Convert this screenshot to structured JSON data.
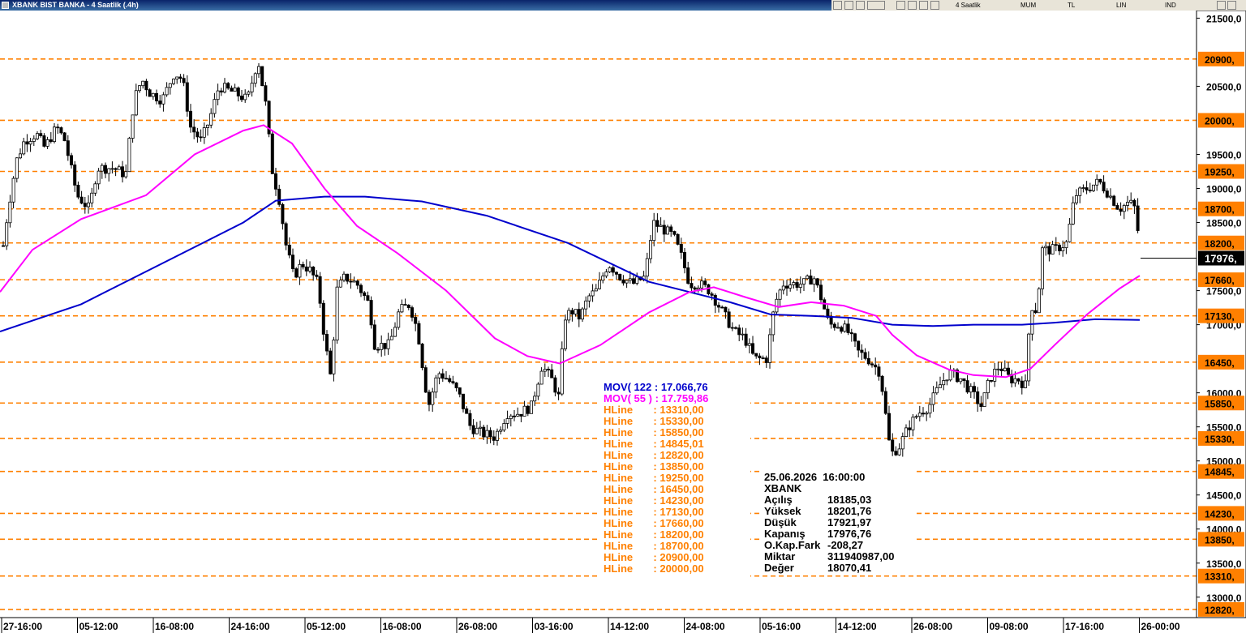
{
  "window": {
    "title": "XBANK BIST BANKA - 4 Saatlik (.4h)",
    "toolbar": {
      "period": "4 Saatlik",
      "type": "MUM",
      "currency": "TL",
      "scale": "LIN",
      "mode": "IND"
    }
  },
  "chart_data": {
    "type": "candlestick",
    "symbol": "XBANK",
    "ylim": [
      12700,
      21600
    ],
    "y_ticks": [
      {
        "value": 21500,
        "label": "21500,0"
      },
      {
        "value": 20500,
        "label": "20500,0"
      },
      {
        "value": 19500,
        "label": "19500,0"
      },
      {
        "value": 19000,
        "label": "19000,0"
      },
      {
        "value": 18500,
        "label": "18500,0"
      },
      {
        "value": 17500,
        "label": "17500,0"
      },
      {
        "value": 17000,
        "label": "17000,0"
      },
      {
        "value": 16000,
        "label": "16000,0"
      },
      {
        "value": 15500,
        "label": "15500,0"
      },
      {
        "value": 15000,
        "label": "15000,0"
      },
      {
        "value": 14500,
        "label": "14500,0"
      },
      {
        "value": 14000,
        "label": "14000,0"
      },
      {
        "value": 13500,
        "label": "13500,0"
      },
      {
        "value": 13000,
        "label": "13000,0"
      }
    ],
    "x_labels": [
      "27-16:00",
      "05-12:00",
      "16-08:00",
      "24-16:00",
      "05-12:00",
      "16-08:00",
      "26-08:00",
      "03-16:00",
      "14-12:00",
      "24-08:00",
      "05-16:00",
      "14-12:00",
      "26-08:00",
      "09-08:00",
      "17-16:00",
      "26-00:00"
    ],
    "hlines": [
      {
        "value": 20900,
        "label": "20900,"
      },
      {
        "value": 20000,
        "label": "20000,"
      },
      {
        "value": 19250,
        "label": "19250,"
      },
      {
        "value": 18700,
        "label": "18700,"
      },
      {
        "value": 18200,
        "label": "18200,"
      },
      {
        "value": 17660,
        "label": "17660,"
      },
      {
        "value": 17130,
        "label": "17130,"
      },
      {
        "value": 16450,
        "label": "16450,"
      },
      {
        "value": 15850,
        "label": "15850,"
      },
      {
        "value": 15330,
        "label": "15330,"
      },
      {
        "value": 14845,
        "label": "14845,"
      },
      {
        "value": 14230,
        "label": "14230,"
      },
      {
        "value": 13850,
        "label": "13850,"
      },
      {
        "value": 13310,
        "label": "13310,"
      },
      {
        "value": 12820,
        "label": "12820,"
      }
    ],
    "last_price": {
      "value": 17976.76,
      "label": "17976,"
    },
    "close_path": [
      [
        0,
        17800
      ],
      [
        10,
        18700
      ],
      [
        20,
        19400
      ],
      [
        30,
        19700
      ],
      [
        45,
        19800
      ],
      [
        55,
        19600
      ],
      [
        70,
        19900
      ],
      [
        80,
        19700
      ],
      [
        95,
        18900
      ],
      [
        110,
        18700
      ],
      [
        120,
        19300
      ],
      [
        140,
        19300
      ],
      [
        155,
        19200
      ],
      [
        165,
        20300
      ],
      [
        175,
        20600
      ],
      [
        185,
        20400
      ],
      [
        200,
        20300
      ],
      [
        215,
        20700
      ],
      [
        225,
        20600
      ],
      [
        235,
        19900
      ],
      [
        248,
        19700
      ],
      [
        258,
        20000
      ],
      [
        270,
        20500
      ],
      [
        290,
        20400
      ],
      [
        305,
        20300
      ],
      [
        318,
        20900
      ],
      [
        328,
        20200
      ],
      [
        335,
        19300
      ],
      [
        345,
        18800
      ],
      [
        352,
        18200
      ],
      [
        362,
        17700
      ],
      [
        372,
        17900
      ],
      [
        382,
        17800
      ],
      [
        392,
        17600
      ],
      [
        400,
        16800
      ],
      [
        408,
        16200
      ],
      [
        415,
        17500
      ],
      [
        425,
        17700
      ],
      [
        440,
        17600
      ],
      [
        455,
        17300
      ],
      [
        462,
        16700
      ],
      [
        480,
        16700
      ],
      [
        492,
        17200
      ],
      [
        505,
        17300
      ],
      [
        515,
        16900
      ],
      [
        528,
        15800
      ],
      [
        540,
        16300
      ],
      [
        552,
        16200
      ],
      [
        565,
        16000
      ],
      [
        580,
        15500
      ],
      [
        595,
        15400
      ],
      [
        610,
        15350
      ],
      [
        625,
        15700
      ],
      [
        640,
        15700
      ],
      [
        655,
        15800
      ],
      [
        668,
        16400
      ],
      [
        680,
        16200
      ],
      [
        690,
        15900
      ],
      [
        695,
        17100
      ],
      [
        705,
        17200
      ],
      [
        715,
        17100
      ],
      [
        725,
        17400
      ],
      [
        735,
        17500
      ],
      [
        750,
        17900
      ],
      [
        765,
        17700
      ],
      [
        780,
        17600
      ],
      [
        795,
        17700
      ],
      [
        805,
        18500
      ],
      [
        818,
        18400
      ],
      [
        830,
        18300
      ],
      [
        840,
        18000
      ],
      [
        850,
        17600
      ],
      [
        862,
        17600
      ],
      [
        875,
        17500
      ],
      [
        885,
        17300
      ],
      [
        895,
        17100
      ],
      [
        905,
        16900
      ],
      [
        918,
        16800
      ],
      [
        930,
        16500
      ],
      [
        945,
        16500
      ],
      [
        955,
        17300
      ],
      [
        965,
        17600
      ],
      [
        978,
        17600
      ],
      [
        990,
        17600
      ],
      [
        1003,
        17700
      ],
      [
        1012,
        17400
      ],
      [
        1022,
        17000
      ],
      [
        1035,
        17000
      ],
      [
        1045,
        16900
      ],
      [
        1058,
        16600
      ],
      [
        1070,
        16500
      ],
      [
        1085,
        16300
      ],
      [
        1098,
        15100
      ],
      [
        1108,
        15200
      ],
      [
        1120,
        15500
      ],
      [
        1132,
        15700
      ],
      [
        1145,
        15800
      ],
      [
        1158,
        16100
      ],
      [
        1170,
        16300
      ],
      [
        1185,
        16200
      ],
      [
        1198,
        16000
      ],
      [
        1210,
        15800
      ],
      [
        1220,
        16200
      ],
      [
        1232,
        16400
      ],
      [
        1245,
        16200
      ],
      [
        1255,
        16200
      ],
      [
        1265,
        16100
      ],
      [
        1270,
        17300
      ],
      [
        1278,
        17200
      ],
      [
        1285,
        18100
      ],
      [
        1300,
        18100
      ],
      [
        1315,
        18200
      ],
      [
        1325,
        18900
      ],
      [
        1340,
        19000
      ],
      [
        1355,
        19100
      ],
      [
        1368,
        18900
      ],
      [
        1380,
        18700
      ],
      [
        1392,
        18800
      ],
      [
        1400,
        18700
      ],
      [
        1406,
        17976
      ]
    ],
    "series": [
      {
        "name": "MOV( 122",
        "value_label": "17.066,76",
        "color": "#0000cc",
        "path": [
          [
            0,
            16900
          ],
          [
            100,
            17300
          ],
          [
            200,
            17900
          ],
          [
            300,
            18500
          ],
          [
            340,
            18820
          ],
          [
            400,
            18880
          ],
          [
            450,
            18880
          ],
          [
            520,
            18810
          ],
          [
            600,
            18600
          ],
          [
            700,
            18200
          ],
          [
            800,
            17630
          ],
          [
            900,
            17330
          ],
          [
            950,
            17150
          ],
          [
            1000,
            17130
          ],
          [
            1050,
            17100
          ],
          [
            1100,
            17000
          ],
          [
            1150,
            16980
          ],
          [
            1200,
            17000
          ],
          [
            1260,
            17000
          ],
          [
            1300,
            17030
          ],
          [
            1350,
            17080
          ],
          [
            1405,
            17070
          ]
        ]
      },
      {
        "name": "MOV( 55 )",
        "value_label": "17.759,86",
        "color": "#ff00ff",
        "path": [
          [
            0,
            17480
          ],
          [
            40,
            18100
          ],
          [
            100,
            18550
          ],
          [
            180,
            18900
          ],
          [
            240,
            19500
          ],
          [
            300,
            19850
          ],
          [
            325,
            19930
          ],
          [
            360,
            19660
          ],
          [
            400,
            19000
          ],
          [
            440,
            18450
          ],
          [
            490,
            18050
          ],
          [
            550,
            17500
          ],
          [
            610,
            16800
          ],
          [
            650,
            16540
          ],
          [
            690,
            16430
          ],
          [
            740,
            16700
          ],
          [
            800,
            17180
          ],
          [
            850,
            17480
          ],
          [
            880,
            17550
          ],
          [
            920,
            17400
          ],
          [
            960,
            17260
          ],
          [
            1000,
            17330
          ],
          [
            1040,
            17280
          ],
          [
            1080,
            17130
          ],
          [
            1100,
            16850
          ],
          [
            1130,
            16550
          ],
          [
            1170,
            16340
          ],
          [
            1200,
            16260
          ],
          [
            1240,
            16230
          ],
          [
            1270,
            16350
          ],
          [
            1300,
            16700
          ],
          [
            1340,
            17150
          ],
          [
            1380,
            17530
          ],
          [
            1405,
            17720
          ]
        ]
      }
    ],
    "legend_hlines": [
      "13310,00",
      "15330,00",
      "15850,00",
      "14845,01",
      "12820,00",
      "13850,00",
      "19250,00",
      "16450,00",
      "14230,00",
      "17130,00",
      "17660,00",
      "18200,00",
      "18700,00",
      "20900,00",
      "20000,00"
    ],
    "hline_legend_label": "HLine"
  },
  "bar_info": {
    "datetime": "25.06.2026  16:00:00",
    "symbol": "XBANK",
    "rows": [
      {
        "label": "Açılış",
        "value": "18185,03"
      },
      {
        "label": "Yüksek",
        "value": "18201,76"
      },
      {
        "label": "Düşük",
        "value": "17921,97"
      },
      {
        "label": "Kapanış",
        "value": "17976,76"
      },
      {
        "label": "O.Kap.Fark",
        "value": "-208,27"
      },
      {
        "label": "Miktar",
        "value": "311940987,00"
      },
      {
        "label": "Değer",
        "value": "18070,41"
      }
    ]
  },
  "colors": {
    "hline": "#ff8000",
    "mov122": "#0000cc",
    "mov55": "#ff00ff",
    "candle": "#000000",
    "titlebar": "#0a246a"
  }
}
